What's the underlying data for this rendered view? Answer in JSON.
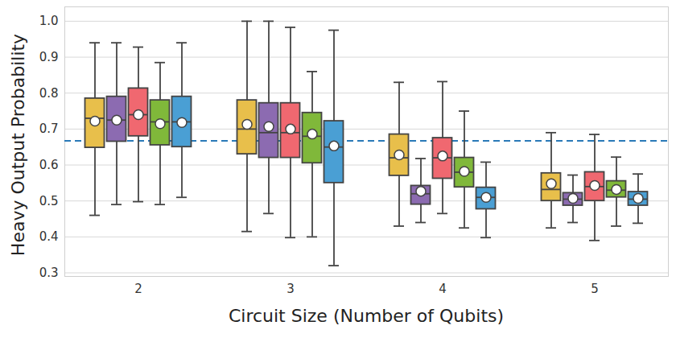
{
  "chart_data": {
    "type": "box",
    "x_label": "Circuit Size (Number of Qubits)",
    "y_label": "Heavy Output Probability",
    "categories": [
      "2",
      "3",
      "4",
      "5"
    ],
    "series": [
      {
        "color": "#e8bf4b",
        "min": [
          0.46,
          0.415,
          0.43,
          0.425
        ],
        "q1": [
          0.648,
          0.63,
          0.57,
          0.5
        ],
        "median": [
          0.73,
          0.7,
          0.62,
          0.532
        ],
        "q3": [
          0.785,
          0.78,
          0.685,
          0.577
        ],
        "max": [
          0.94,
          1.0,
          0.83,
          0.69
        ],
        "mean": [
          0.722,
          0.713,
          0.628,
          0.548
        ]
      },
      {
        "color": "#8c6bb1",
        "min": [
          0.49,
          0.465,
          0.44,
          0.44
        ],
        "q1": [
          0.665,
          0.62,
          0.49,
          0.487
        ],
        "median": [
          0.725,
          0.69,
          0.52,
          0.505
        ],
        "q3": [
          0.79,
          0.772,
          0.542,
          0.522
        ],
        "max": [
          0.94,
          1.0,
          0.618,
          0.572
        ],
        "mean": [
          0.725,
          0.707,
          0.527,
          0.507
        ]
      },
      {
        "color": "#f06870",
        "min": [
          0.498,
          0.398,
          0.465,
          0.39
        ],
        "q1": [
          0.68,
          0.62,
          0.562,
          0.5
        ],
        "median": [
          0.74,
          0.69,
          0.62,
          0.54
        ],
        "q3": [
          0.813,
          0.772,
          0.675,
          0.58
        ],
        "max": [
          0.928,
          0.983,
          0.832,
          0.685
        ],
        "mean": [
          0.74,
          0.7,
          0.625,
          0.543
        ]
      },
      {
        "color": "#80b83a",
        "min": [
          0.49,
          0.4,
          0.425,
          0.43
        ],
        "q1": [
          0.655,
          0.605,
          0.538,
          0.51
        ],
        "median": [
          0.72,
          0.68,
          0.58,
          0.53
        ],
        "q3": [
          0.78,
          0.745,
          0.62,
          0.555
        ],
        "max": [
          0.885,
          0.86,
          0.75,
          0.622
        ],
        "mean": [
          0.715,
          0.686,
          0.582,
          0.532
        ]
      },
      {
        "color": "#4a9fd4",
        "min": [
          0.51,
          0.32,
          0.398,
          0.438
        ],
        "q1": [
          0.65,
          0.55,
          0.477,
          0.487
        ],
        "median": [
          0.72,
          0.65,
          0.51,
          0.505
        ],
        "q3": [
          0.79,
          0.722,
          0.537,
          0.525
        ],
        "max": [
          0.94,
          0.975,
          0.608,
          0.575
        ],
        "mean": [
          0.718,
          0.653,
          0.51,
          0.507
        ]
      }
    ],
    "threshold": {
      "value": 0.667,
      "color": "#2a7ab8",
      "line_style": "dashed"
    },
    "ylim": [
      0.29,
      1.04
    ],
    "yticks": [
      0.3,
      0.4,
      0.5,
      0.6,
      0.7,
      0.8,
      0.9,
      {
        "value": 1.0,
        "label": "1.0"
      }
    ],
    "grid": true
  }
}
